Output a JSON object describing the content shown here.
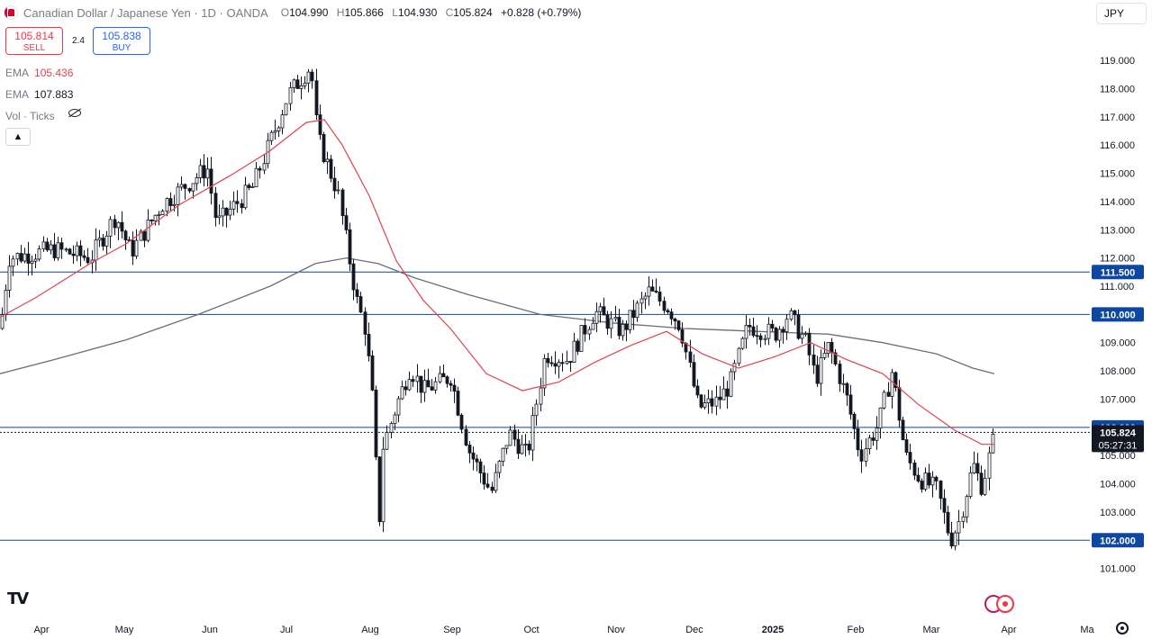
{
  "header": {
    "title": "Canadian Dollar / Japanese Yen · 1D · OANDA",
    "o_label": "O",
    "o": "104.990",
    "h_label": "H",
    "h": "105.866",
    "l_label": "L",
    "l": "104.930",
    "c_label": "C",
    "c": "105.824",
    "change": "+0.828 (+0.79%)"
  },
  "trade": {
    "sell_price": "105.814",
    "sell_label": "SELL",
    "spread": "2.4",
    "buy_price": "105.838",
    "buy_label": "BUY"
  },
  "indicators": [
    {
      "name": "EMA",
      "value": "105.436"
    },
    {
      "name": "EMA",
      "value": "107.883"
    },
    {
      "name": "Vol · Ticks",
      "value": ""
    }
  ],
  "currency_button": "JPY",
  "collapse_icon": "chevron-up-icon",
  "chart_data": {
    "type": "candlestick",
    "y_axis": {
      "ylim": [
        99.3,
        120.5
      ],
      "ticks": [
        "101.000",
        "102.000",
        "103.000",
        "104.000",
        "105.000",
        "106.000",
        "107.000",
        "108.000",
        "109.000",
        "110.000",
        "111.000",
        "112.000",
        "113.000",
        "114.000",
        "115.000",
        "116.000",
        "117.000",
        "118.000",
        "119.000"
      ]
    },
    "x_axis": {
      "ticks": [
        "Apr",
        "May",
        "Jun",
        "Jul",
        "Aug",
        "Sep",
        "Oct",
        "Nov",
        "Dec",
        "2025",
        "Feb",
        "Mar",
        "Apr",
        "Ma"
      ]
    },
    "horizontal_lines": [
      {
        "label": "111.500",
        "value": 111.5,
        "color": "#0d47a1"
      },
      {
        "label": "110.000",
        "value": 110.0,
        "color": "#0d47a1"
      },
      {
        "label": "106.000",
        "value": 106.0,
        "color": "#0d47a1"
      },
      {
        "label": "102.000",
        "value": 102.0,
        "color": "#0d47a1"
      }
    ],
    "last_price": {
      "label": "105.824",
      "value": 105.824,
      "countdown": "05:27:31",
      "color": "#131722"
    },
    "ema_fast": {
      "color": "#e0434f",
      "points": [
        [
          0,
          109.9
        ],
        [
          40,
          110.6
        ],
        [
          100,
          111.8
        ],
        [
          140,
          112.5
        ],
        [
          200,
          113.9
        ],
        [
          260,
          115.0
        ],
        [
          300,
          115.8
        ],
        [
          340,
          116.8
        ],
        [
          360,
          116.9
        ],
        [
          380,
          116.0
        ],
        [
          410,
          114.2
        ],
        [
          440,
          111.9
        ],
        [
          470,
          110.5
        ],
        [
          500,
          109.5
        ],
        [
          540,
          107.9
        ],
        [
          580,
          107.3
        ],
        [
          620,
          107.6
        ],
        [
          660,
          108.3
        ],
        [
          700,
          108.9
        ],
        [
          740,
          109.4
        ],
        [
          780,
          108.6
        ],
        [
          820,
          108.1
        ],
        [
          860,
          108.5
        ],
        [
          900,
          109.0
        ],
        [
          940,
          108.4
        ],
        [
          980,
          107.9
        ],
        [
          1020,
          106.8
        ],
        [
          1060,
          105.9
        ],
        [
          1090,
          105.4
        ],
        [
          1104,
          105.4
        ]
      ]
    },
    "ema_slow": {
      "color": "#6b6e74",
      "points": [
        [
          0,
          107.9
        ],
        [
          60,
          108.4
        ],
        [
          140,
          109.1
        ],
        [
          220,
          110.0
        ],
        [
          300,
          111.0
        ],
        [
          350,
          111.8
        ],
        [
          385,
          112.0
        ],
        [
          420,
          111.8
        ],
        [
          460,
          111.3
        ],
        [
          520,
          110.7
        ],
        [
          600,
          110.0
        ],
        [
          680,
          109.7
        ],
        [
          760,
          109.5
        ],
        [
          840,
          109.4
        ],
        [
          920,
          109.3
        ],
        [
          980,
          109.0
        ],
        [
          1040,
          108.6
        ],
        [
          1080,
          108.1
        ],
        [
          1104,
          107.9
        ]
      ]
    },
    "candles_key_points": [
      [
        0,
        109.5
      ],
      [
        10,
        112.0
      ],
      [
        60,
        112.3
      ],
      [
        100,
        112.0
      ],
      [
        128,
        113.5
      ],
      [
        145,
        112.2
      ],
      [
        180,
        113.9
      ],
      [
        230,
        115.2
      ],
      [
        240,
        113.2
      ],
      [
        280,
        114.5
      ],
      [
        320,
        117.8
      ],
      [
        345,
        118.8
      ],
      [
        352,
        116.3
      ],
      [
        375,
        114.3
      ],
      [
        395,
        110.6
      ],
      [
        405,
        109.5
      ],
      [
        415,
        106.4
      ],
      [
        420,
        102.1
      ],
      [
        425,
        105.3
      ],
      [
        440,
        106.8
      ],
      [
        455,
        108.1
      ],
      [
        470,
        107.3
      ],
      [
        500,
        107.8
      ],
      [
        520,
        105.2
      ],
      [
        545,
        103.7
      ],
      [
        565,
        105.8
      ],
      [
        585,
        105.0
      ],
      [
        605,
        108.6
      ],
      [
        630,
        108.4
      ],
      [
        660,
        110.1
      ],
      [
        690,
        109.4
      ],
      [
        720,
        110.8
      ],
      [
        740,
        110.3
      ],
      [
        755,
        109.6
      ],
      [
        775,
        106.7
      ],
      [
        795,
        106.9
      ],
      [
        810,
        107.5
      ],
      [
        830,
        109.6
      ],
      [
        860,
        109.3
      ],
      [
        875,
        110.0
      ],
      [
        895,
        109.0
      ],
      [
        905,
        107.7
      ],
      [
        920,
        108.9
      ],
      [
        940,
        107.0
      ],
      [
        955,
        105.0
      ],
      [
        975,
        106.1
      ],
      [
        990,
        108.0
      ],
      [
        1005,
        105.0
      ],
      [
        1020,
        104.2
      ],
      [
        1040,
        103.8
      ],
      [
        1055,
        102.0
      ],
      [
        1065,
        102.7
      ],
      [
        1080,
        104.7
      ],
      [
        1090,
        103.9
      ],
      [
        1104,
        105.8
      ]
    ]
  }
}
